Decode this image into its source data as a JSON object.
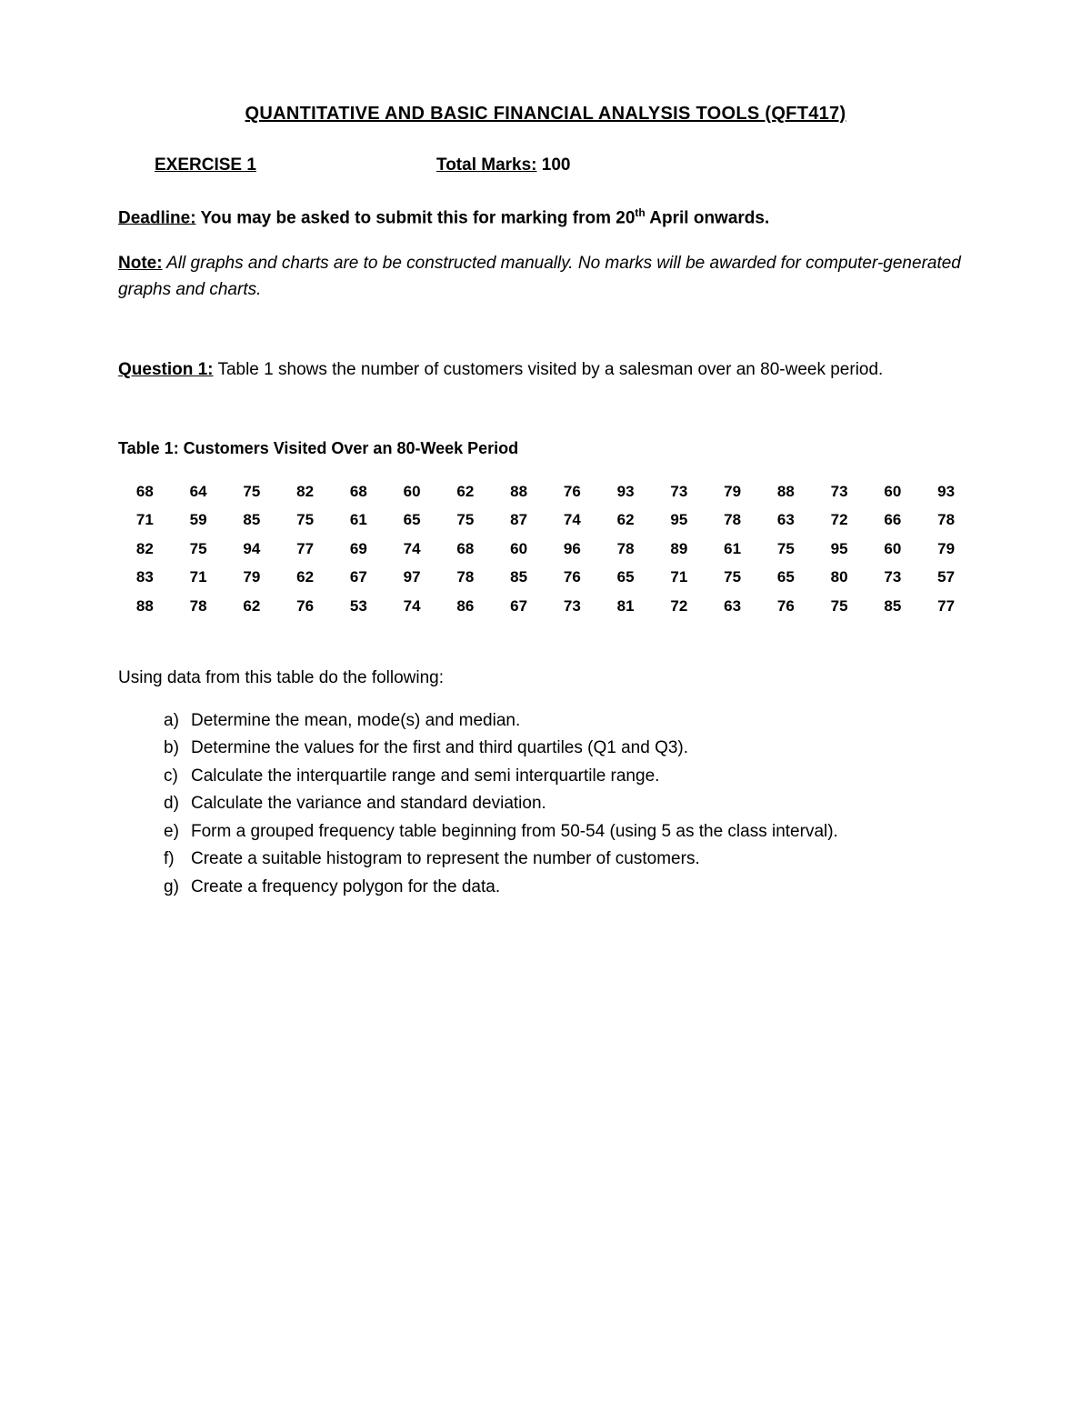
{
  "title": "QUANTITATIVE AND BASIC FINANCIAL ANALYSIS TOOLS (QFT417)",
  "exercise_label": "EXERCISE 1",
  "marks_label": "Total Marks:",
  "marks_value": " 100",
  "deadline_label": "Deadline:",
  "deadline_text_before": " You may be asked to submit this for marking from 20",
  "deadline_sup": "th",
  "deadline_text_after": " April onwards.",
  "note_label": "Note:",
  "note_text": " All graphs and charts are to be constructed manually. No marks will be awarded for computer-generated graphs and charts.",
  "question_label": "Question 1:",
  "question_text": " Table 1 shows the number of customers visited by a salesman over an 80-week period.",
  "table_title": "Table 1: Customers Visited Over an 80-Week Period",
  "table_data": {
    "rows": [
      [
        68,
        64,
        75,
        82,
        68,
        60,
        62,
        88,
        76,
        93,
        73,
        79,
        88,
        73,
        60,
        93
      ],
      [
        71,
        59,
        85,
        75,
        61,
        65,
        75,
        87,
        74,
        62,
        95,
        78,
        63,
        72,
        66,
        78
      ],
      [
        82,
        75,
        94,
        77,
        69,
        74,
        68,
        60,
        96,
        78,
        89,
        61,
        75,
        95,
        60,
        79
      ],
      [
        83,
        71,
        79,
        62,
        67,
        97,
        78,
        85,
        76,
        65,
        71,
        75,
        65,
        80,
        73,
        57
      ],
      [
        88,
        78,
        62,
        76,
        53,
        74,
        86,
        67,
        73,
        81,
        72,
        63,
        76,
        75,
        85,
        77
      ]
    ]
  },
  "instruction": "Using data from this table do the following:",
  "sub_questions": [
    {
      "marker": "a)",
      "text": "Determine the mean, mode(s) and median."
    },
    {
      "marker": "b)",
      "text": "Determine the values for the first and third quartiles (Q1 and Q3)."
    },
    {
      "marker": "c)",
      "text": "Calculate the interquartile range and semi interquartile range."
    },
    {
      "marker": "d)",
      "text": "Calculate the variance and standard deviation."
    },
    {
      "marker": "e)",
      "text": "Form a grouped frequency table beginning from 50-54 (using 5 as the class interval)."
    },
    {
      "marker": "f)",
      "text": "Create a suitable histogram to represent the number of customers."
    },
    {
      "marker": "g)",
      "text": "Create a frequency polygon for the data."
    }
  ],
  "colors": {
    "text": "#000000",
    "background": "#ffffff"
  }
}
